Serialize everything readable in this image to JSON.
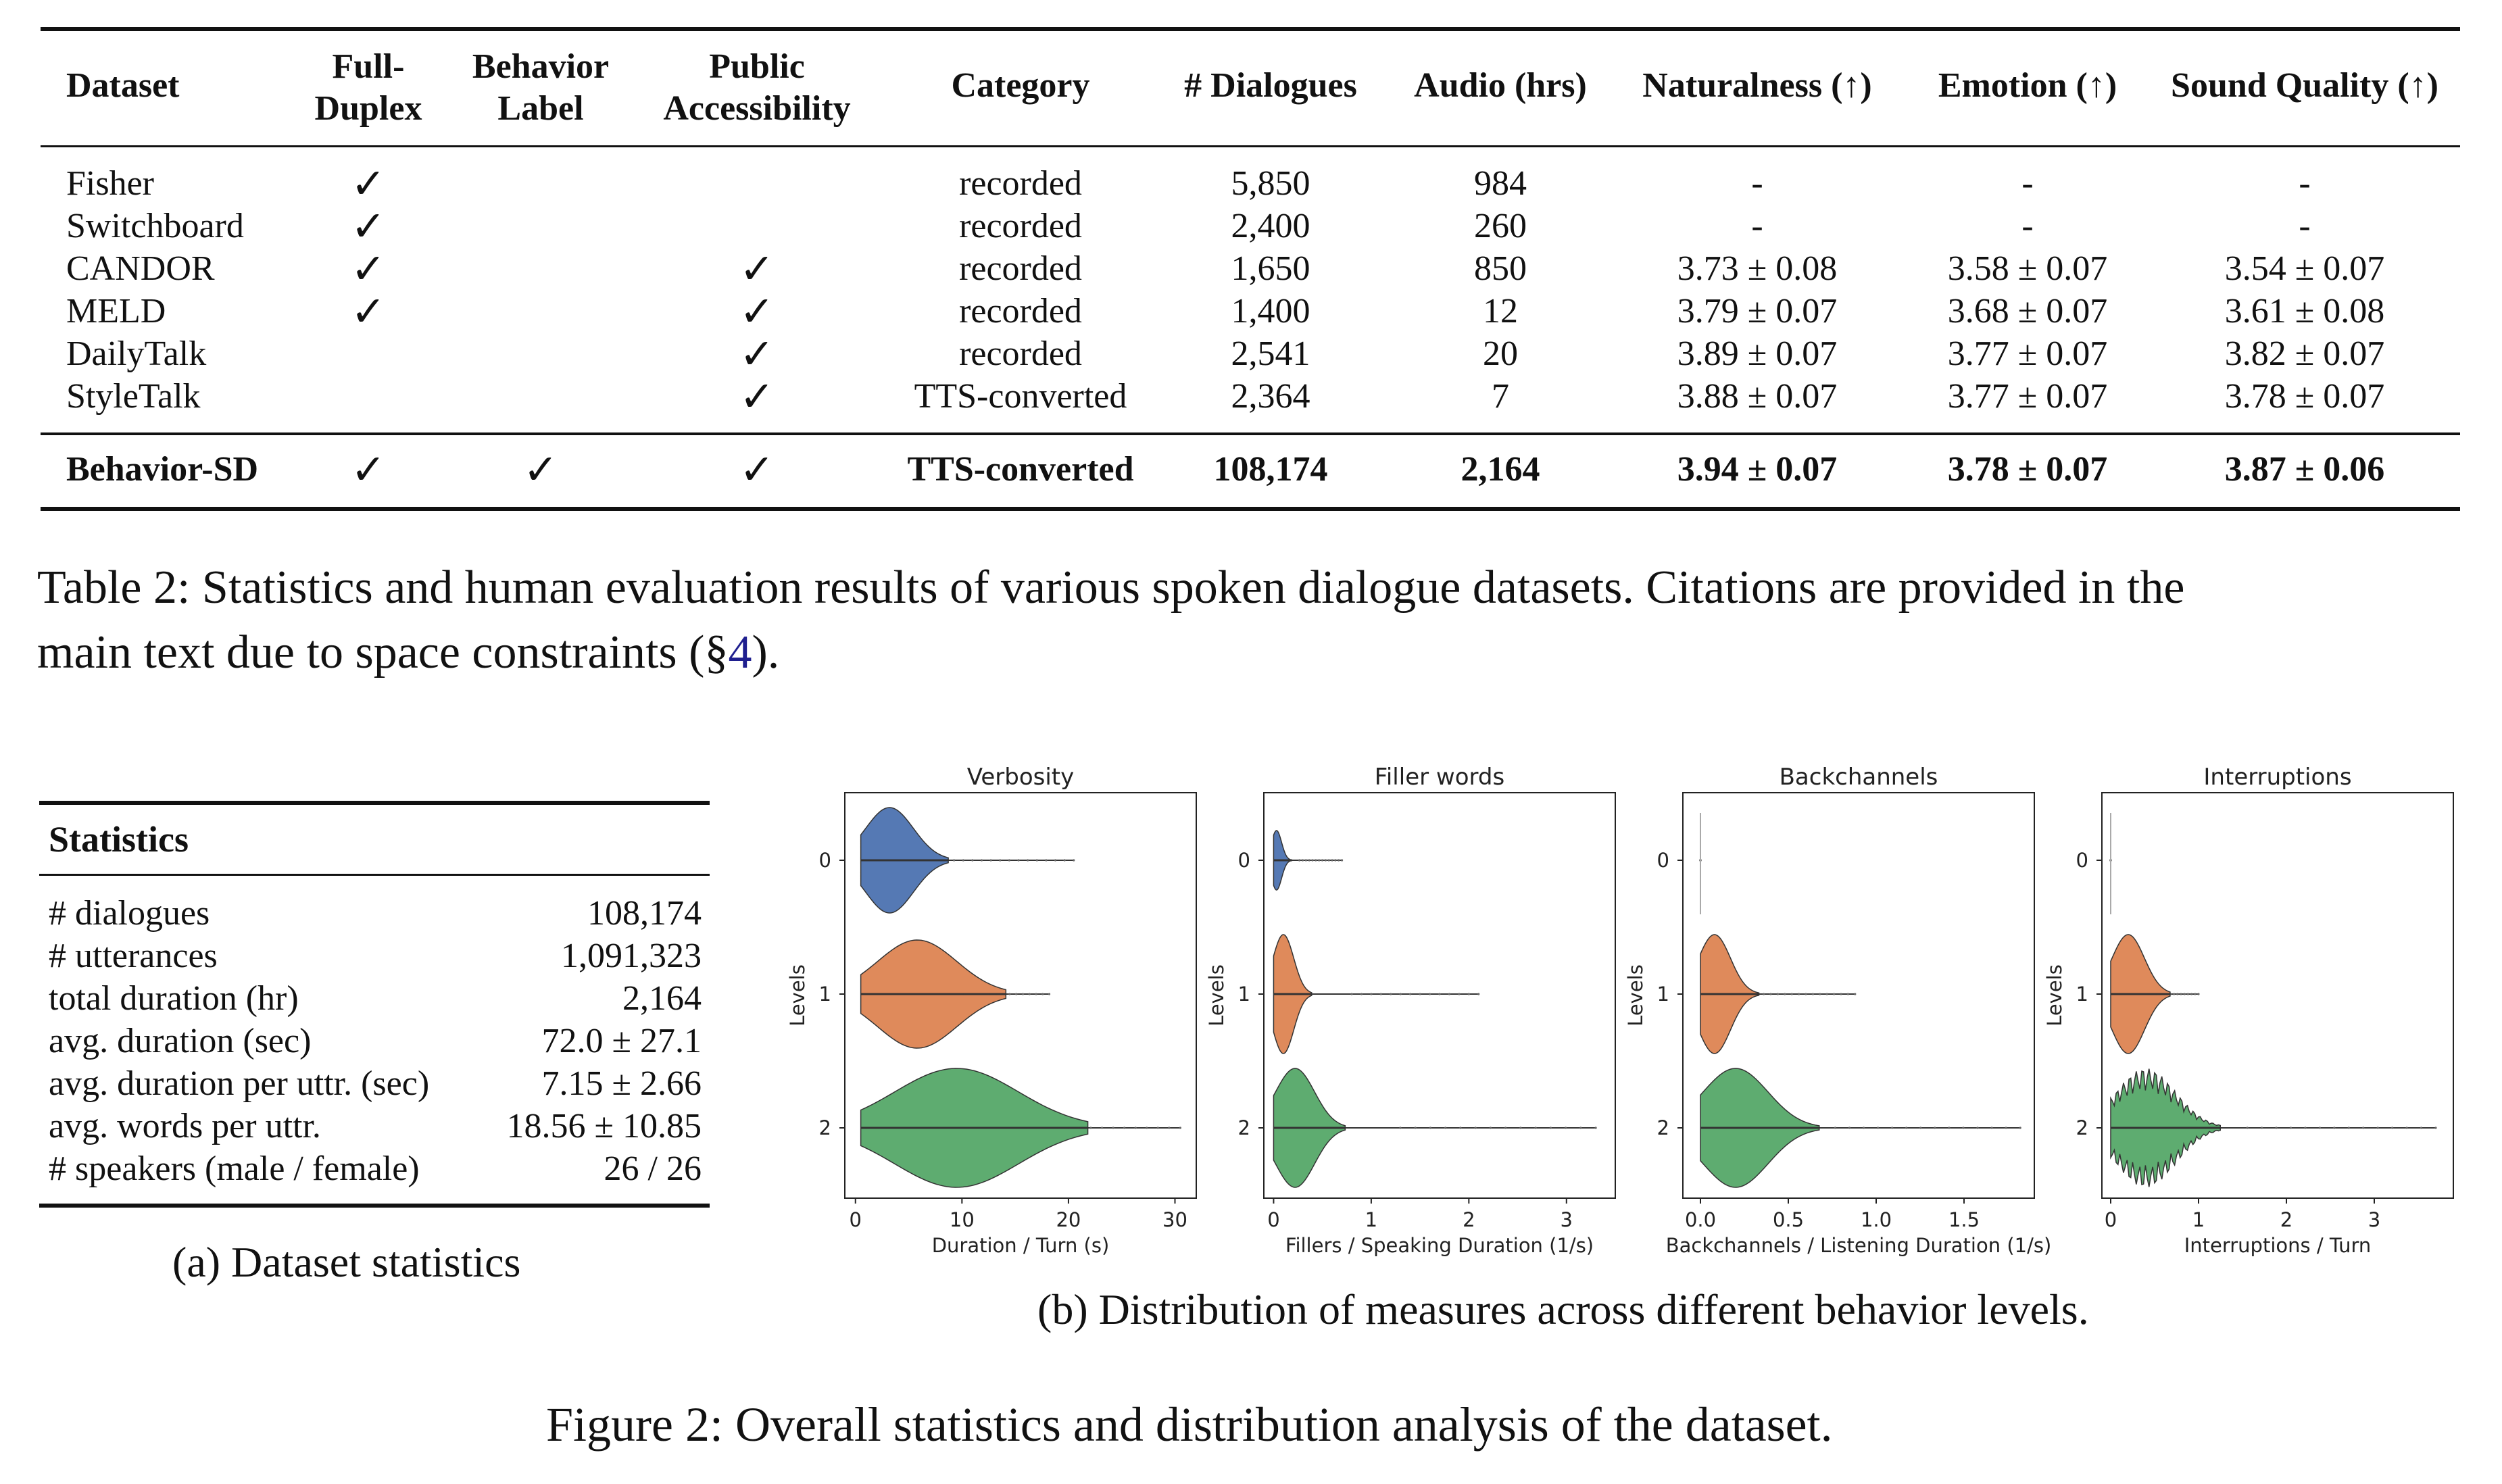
{
  "table2": {
    "headers": [
      "Dataset",
      "Full-\nDuplex",
      "Behavior\nLabel",
      "Public\nAccessibility",
      "Category",
      "# Dialogues",
      "Audio (hrs)",
      "Naturalness (↑)",
      "Emotion (↑)",
      "Sound Quality (↑)"
    ],
    "rows": [
      [
        "Fisher",
        "✓",
        "",
        "",
        "recorded",
        "5,850",
        "984",
        "-",
        "-",
        "-"
      ],
      [
        "Switchboard",
        "✓",
        "",
        "",
        "recorded",
        "2,400",
        "260",
        "-",
        "-",
        "-"
      ],
      [
        "CANDOR",
        "✓",
        "",
        "✓",
        "recorded",
        "1,650",
        "850",
        "3.73 ± 0.08",
        "3.58 ± 0.07",
        "3.54 ± 0.07"
      ],
      [
        "MELD",
        "✓",
        "",
        "✓",
        "recorded",
        "1,400",
        "12",
        "3.79 ± 0.07",
        "3.68 ± 0.07",
        "3.61 ± 0.08"
      ],
      [
        "DailyTalk",
        "",
        "",
        "✓",
        "recorded",
        "2,541",
        "20",
        "3.89 ± 0.07",
        "3.77 ± 0.07",
        "3.82 ± 0.07"
      ],
      [
        "StyleTalk",
        "",
        "",
        "✓",
        "TTS-converted",
        "2,364",
        "7",
        "3.88 ± 0.07",
        "3.77 ± 0.07",
        "3.78 ± 0.07"
      ]
    ],
    "final_row": [
      "Behavior-SD",
      "✓",
      "✓",
      "✓",
      "TTS-converted",
      "108,174",
      "2,164",
      "3.94 ± 0.07",
      "3.78 ± 0.07",
      "3.87 ± 0.06"
    ],
    "caption_main": "Table 2: Statistics and human evaluation results of various spoken dialogue datasets. Citations are provided in the",
    "caption_cont_pre": "main text due to space constraints (§",
    "caption_ref": "4",
    "caption_cont_post": ")."
  },
  "stats": {
    "title": "Statistics",
    "rows": [
      [
        "# dialogues",
        "108,174"
      ],
      [
        "# utterances",
        "1,091,323"
      ],
      [
        "total duration (hr)",
        "2,164"
      ],
      [
        "avg. duration (sec)",
        "72.0 ± 27.1"
      ],
      [
        "avg. duration per uttr. (sec)",
        "7.15 ± 2.66"
      ],
      [
        "avg. words per uttr.",
        "18.56 ± 10.85"
      ],
      [
        "# speakers (male / female)",
        "26 / 26"
      ]
    ],
    "subcaption": "(a) Dataset statistics"
  },
  "charts_subcaption": "(b) Distribution of measures across different behavior levels.",
  "figure_caption": "Figure 2: Overall statistics and distribution analysis of the dataset.",
  "chart_data": [
    {
      "type": "violin",
      "title": "Verbosity",
      "xlabel": "Duration / Turn (s)",
      "ylabel": "Levels",
      "categories": [
        "0",
        "1",
        "2"
      ],
      "xlim": [
        -1,
        32
      ],
      "xticks": [
        0,
        10,
        20,
        30
      ],
      "series": [
        {
          "level": "0",
          "peak": 3.2,
          "min": 0.5,
          "max": 20.5,
          "color": "#4c72b0"
        },
        {
          "level": "1",
          "peak": 5.8,
          "min": 0.5,
          "max": 18.2,
          "color": "#dd8452"
        },
        {
          "level": "2",
          "peak": 9.5,
          "min": 0.5,
          "max": 30.5,
          "color": "#55a868"
        }
      ]
    },
    {
      "type": "violin",
      "title": "Filler words",
      "xlabel": "Fillers / Speaking Duration (1/s)",
      "ylabel": "Levels",
      "categories": [
        "0",
        "1",
        "2"
      ],
      "xlim": [
        -0.1,
        3.5
      ],
      "xticks": [
        0,
        1,
        2,
        3
      ],
      "series": [
        {
          "level": "0",
          "peak": 0.03,
          "min": 0.0,
          "max": 0.7,
          "color": "#4c72b0"
        },
        {
          "level": "1",
          "peak": 0.1,
          "min": 0.0,
          "max": 2.1,
          "color": "#dd8452"
        },
        {
          "level": "2",
          "peak": 0.22,
          "min": 0.0,
          "max": 3.3,
          "color": "#55a868"
        }
      ]
    },
    {
      "type": "violin",
      "title": "Backchannels",
      "xlabel": "Backchannels / Listening Duration (1/s)",
      "ylabel": "Levels",
      "categories": [
        "0",
        "1",
        "2"
      ],
      "xlim": [
        -0.1,
        1.9
      ],
      "xticks": [
        "0.0",
        "0.5",
        "1.0",
        "1.5"
      ],
      "series": [
        {
          "level": "0",
          "peak": 0.0,
          "min": 0.0,
          "max": 0.0,
          "color": "#4c72b0"
        },
        {
          "level": "1",
          "peak": 0.08,
          "min": 0.0,
          "max": 0.88,
          "color": "#dd8452"
        },
        {
          "level": "2",
          "peak": 0.2,
          "min": 0.0,
          "max": 1.82,
          "color": "#55a868"
        }
      ]
    },
    {
      "type": "violin",
      "title": "Interruptions",
      "xlabel": "Interruptions / Turn",
      "ylabel": "Levels",
      "categories": [
        "0",
        "1",
        "2"
      ],
      "xlim": [
        -0.1,
        3.9
      ],
      "xticks": [
        0,
        1,
        2,
        3
      ],
      "series": [
        {
          "level": "0",
          "peak": 0.0,
          "min": 0.0,
          "max": 0.0,
          "color": "#4c72b0"
        },
        {
          "level": "1",
          "peak": 0.2,
          "min": 0.0,
          "max": 1.0,
          "color": "#dd8452"
        },
        {
          "level": "2",
          "peak": 0.4,
          "min": 0.0,
          "max": 3.7,
          "color": "#55a868"
        }
      ]
    }
  ]
}
